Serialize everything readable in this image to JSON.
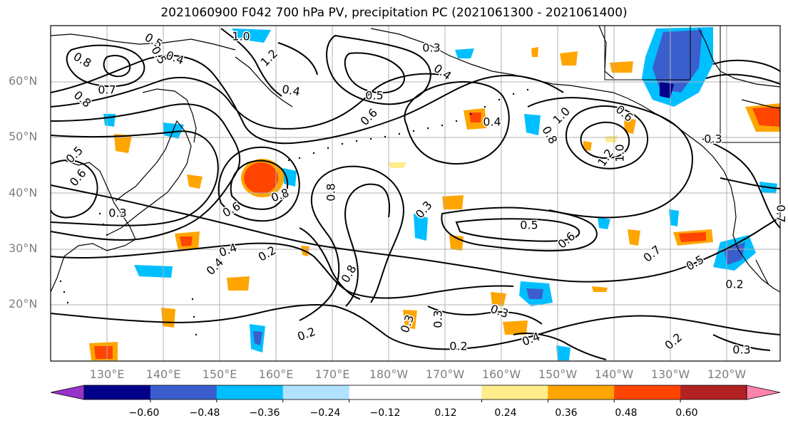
{
  "title": "2021060900 F042 700 hPa PV, precipitation PC (2021061300 - 2021061400)",
  "lat_labels": [
    "60°N",
    "50°N",
    "40°N",
    "30°N",
    "20°N"
  ],
  "lon_labels": [
    "130°E",
    "140°E",
    "150°E",
    "160°E",
    "170°E",
    "180°W",
    "170°W",
    "160°W",
    "150°W",
    "140°W",
    "130°W",
    "120°W"
  ],
  "contour_labels": [
    "1.0",
    "1.2",
    "0.5",
    "0.4",
    "0.8",
    "0.7",
    "0.8",
    "0.5",
    "0.4",
    "0.5",
    "0.6",
    "0.4",
    "1.0",
    "0.6",
    "0.8",
    "1.2",
    "1.0",
    "0.3",
    "0.3",
    "0.6",
    "0.8",
    "0.5",
    "0.3",
    "0.6",
    "0.5",
    "0.6",
    "0.7",
    "0.5",
    "0.2",
    "0.4",
    "0.2",
    "0.4",
    "0.8",
    "0.3",
    "0.3",
    "0.2",
    "0.3",
    "0.4",
    "0.2",
    "0.2",
    "0.3",
    "0.3",
    "0.8",
    "0.4",
    "0.7"
  ],
  "colorbar": {
    "colors": [
      "#9932cc",
      "#00008b",
      "#3a5fcd",
      "#00bfff",
      "#b0e2ff",
      "#ffffff",
      "#ffffff",
      "#ffec8b",
      "#ffa500",
      "#ff4500",
      "#b22222",
      "#ff82ab"
    ],
    "tick_labels": [
      "−0.60",
      "−0.48",
      "−0.36",
      "−0.24",
      "−0.12",
      "0.12",
      "0.24",
      "0.36",
      "0.48",
      "0.60"
    ]
  }
}
